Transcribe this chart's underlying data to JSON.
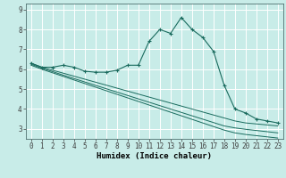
{
  "xlabel": "Humidex (Indice chaleur)",
  "bg_color": "#c8ece8",
  "grid_color": "#ffffff",
  "line_color": "#1a6b5e",
  "marker": "+",
  "x": [
    0,
    1,
    2,
    3,
    4,
    5,
    6,
    7,
    8,
    9,
    10,
    11,
    12,
    13,
    14,
    15,
    16,
    17,
    18,
    19,
    20,
    21,
    22,
    23
  ],
  "y_main": [
    6.3,
    6.1,
    6.1,
    6.2,
    6.1,
    5.9,
    5.85,
    5.85,
    5.95,
    6.2,
    6.2,
    7.4,
    8.0,
    7.8,
    8.6,
    8.0,
    7.6,
    6.9,
    5.2,
    4.0,
    3.8,
    3.5,
    3.4,
    3.3
  ],
  "y_line1": [
    6.3,
    6.1,
    5.95,
    5.8,
    5.65,
    5.5,
    5.35,
    5.2,
    5.05,
    4.9,
    4.75,
    4.6,
    4.45,
    4.3,
    4.15,
    4.0,
    3.85,
    3.7,
    3.55,
    3.4,
    3.3,
    3.25,
    3.2,
    3.15
  ],
  "y_line2": [
    6.25,
    6.05,
    5.88,
    5.7,
    5.53,
    5.36,
    5.19,
    5.02,
    4.85,
    4.68,
    4.51,
    4.34,
    4.17,
    4.0,
    3.83,
    3.66,
    3.49,
    3.32,
    3.15,
    3.05,
    2.98,
    2.92,
    2.86,
    2.8
  ],
  "y_line3": [
    6.2,
    6.0,
    5.82,
    5.64,
    5.46,
    5.28,
    5.1,
    4.92,
    4.74,
    4.56,
    4.38,
    4.2,
    4.02,
    3.84,
    3.66,
    3.48,
    3.3,
    3.12,
    2.94,
    2.8,
    2.72,
    2.66,
    2.6,
    2.54
  ],
  "ylim": [
    2.5,
    9.3
  ],
  "yticks": [
    3,
    4,
    5,
    6,
    7,
    8,
    9
  ],
  "xlim": [
    -0.5,
    23.5
  ],
  "tick_fontsize": 5.5,
  "xlabel_fontsize": 6.5
}
